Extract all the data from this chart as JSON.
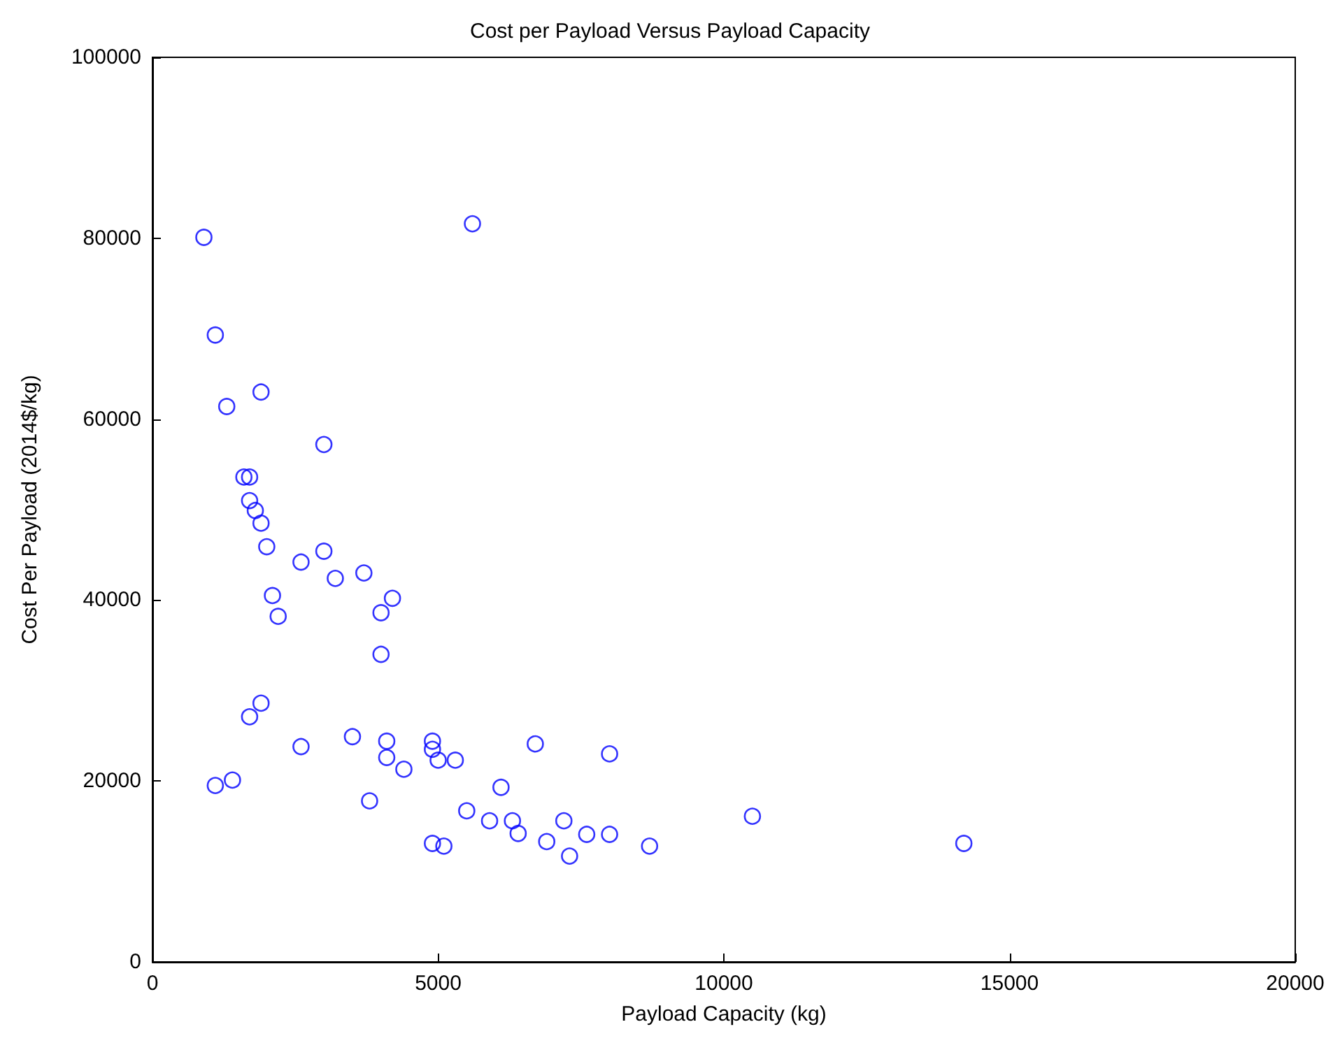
{
  "chart_data": {
    "type": "scatter",
    "title": "Cost per Payload Versus Payload Capacity",
    "xlabel": "Payload Capacity (kg)",
    "ylabel": "Cost Per Payload (2014$/kg)",
    "xlim": [
      0,
      20000
    ],
    "xticks": [
      0,
      5000,
      10000,
      15000,
      20000
    ],
    "ylim": [
      0,
      100000
    ],
    "yticks": [
      0,
      20000,
      40000,
      60000,
      80000,
      100000
    ],
    "grid": false,
    "marker": "circle",
    "series": [
      {
        "color": "#0000ff",
        "x": [
          900,
          1100,
          1900,
          1300,
          3000,
          5600,
          1600,
          1700,
          1700,
          1800,
          1900,
          2000,
          2600,
          3000,
          3700,
          3200,
          2100,
          4200,
          4000,
          2200,
          4000,
          1900,
          1700,
          3500,
          2600,
          4100,
          4900,
          4900,
          5000,
          4100,
          4400,
          5300,
          6700,
          8000,
          6100,
          1400,
          1100,
          3800,
          5500,
          5900,
          6300,
          6400,
          7200,
          7600,
          8000,
          6900,
          7300,
          4900,
          5100,
          8700,
          10500,
          14200
        ],
        "values": [
          80100,
          69300,
          63000,
          61400,
          57200,
          81600,
          53600,
          53600,
          51000,
          49900,
          48500,
          45900,
          44200,
          45400,
          43000,
          42400,
          40500,
          40200,
          38600,
          38200,
          34000,
          28600,
          27100,
          24900,
          23800,
          24400,
          24400,
          23500,
          22300,
          22600,
          21300,
          22300,
          24100,
          23000,
          19300,
          20100,
          19500,
          17800,
          16700,
          15600,
          15600,
          14200,
          15600,
          14100,
          14100,
          13300,
          11700,
          13100,
          12800,
          12800,
          16100,
          13100
        ]
      }
    ]
  }
}
